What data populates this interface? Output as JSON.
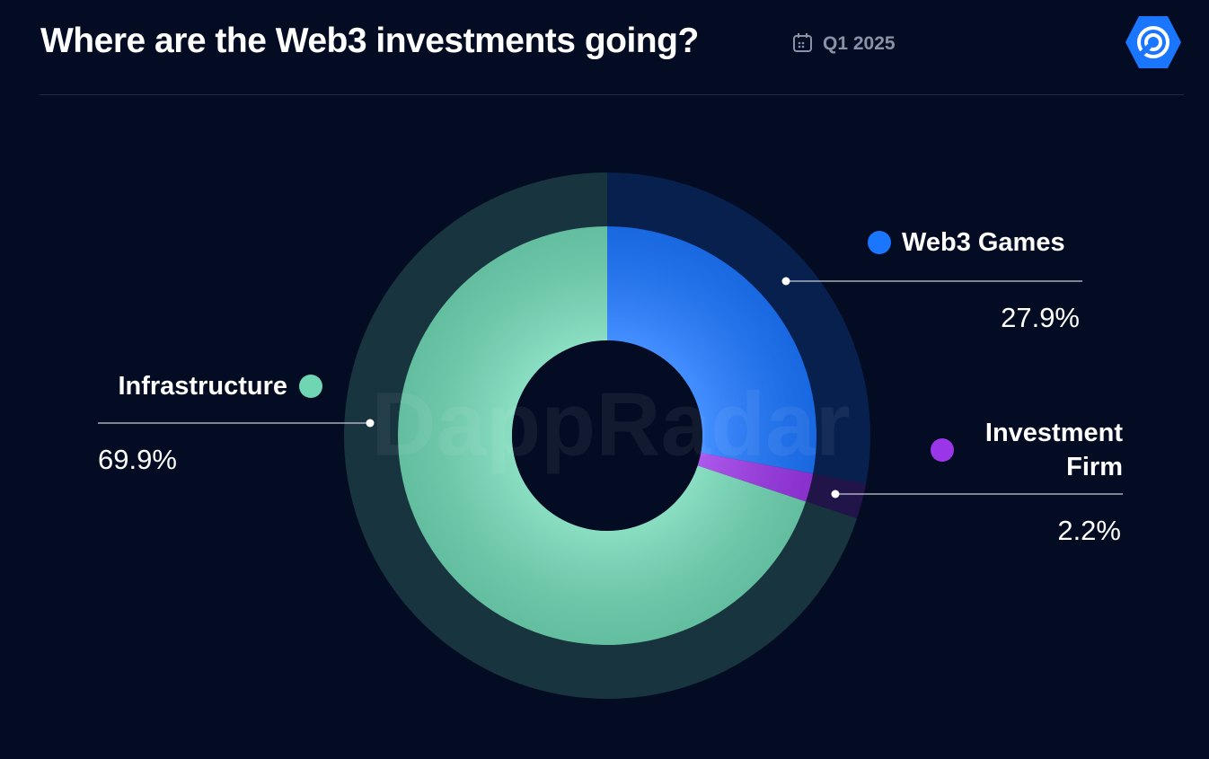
{
  "chart_data": {
    "type": "donut",
    "title": "Where are the Web3 investments going?",
    "subtitle": "Q1 2025",
    "watermark": "DappRadar",
    "categories": [
      "Web3 Games",
      "Investment Firm",
      "Infrastructure"
    ],
    "values": [
      27.9,
      2.2,
      69.9
    ],
    "value_labels": [
      "27.9%",
      "2.2%",
      "69.9%"
    ],
    "colors": [
      "#1a75ff",
      "#9b35e8",
      "#6fd6b4"
    ]
  }
}
